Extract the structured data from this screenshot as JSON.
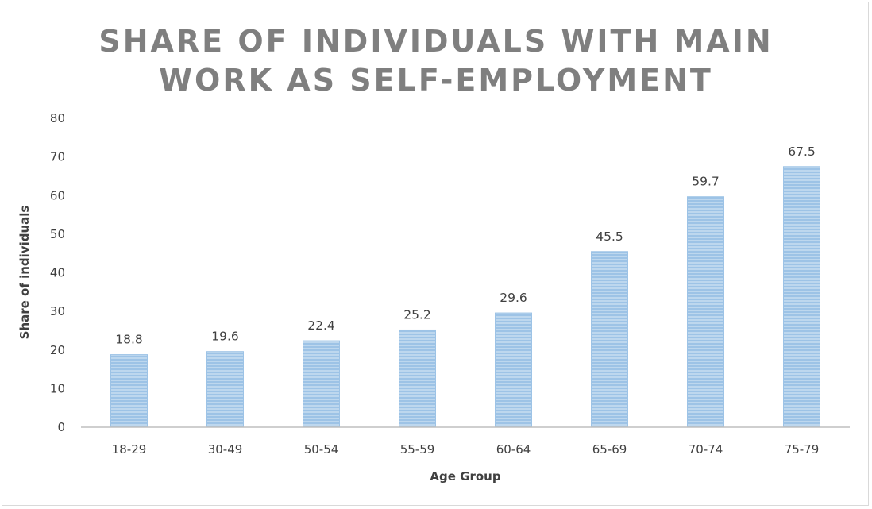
{
  "chart_data": {
    "type": "bar",
    "title": "SHARE OF INDIVIDUALS WITH MAIN\nWORK AS SELF-EMPLOYMENT",
    "xlabel": "Age Group",
    "ylabel": "Share of individuals",
    "categories": [
      "18-29",
      "30-49",
      "50-54",
      "55-59",
      "60-64",
      "65-69",
      "70-74",
      "75-79"
    ],
    "values": [
      18.8,
      19.6,
      22.4,
      25.2,
      29.6,
      45.5,
      59.7,
      67.5
    ],
    "data_labels": [
      "18.8",
      "19.6",
      "22.4",
      "25.2",
      "29.6",
      "45.5",
      "59.7",
      "67.5"
    ],
    "y_ticks": [
      "0",
      "10",
      "20",
      "30",
      "40",
      "50",
      "60",
      "70",
      "80"
    ],
    "ylim": [
      0,
      80
    ],
    "grid": false,
    "legend": "none",
    "bar_fill": "horizontal-stripes",
    "colors": {
      "bar_fill": "#bdd7ee",
      "bar_stripe": "#9dc3e6",
      "bar_edge": "#9dc3e6",
      "axis": "#bfbfbf",
      "text": "#404040",
      "title": "#7f7f7f"
    }
  }
}
